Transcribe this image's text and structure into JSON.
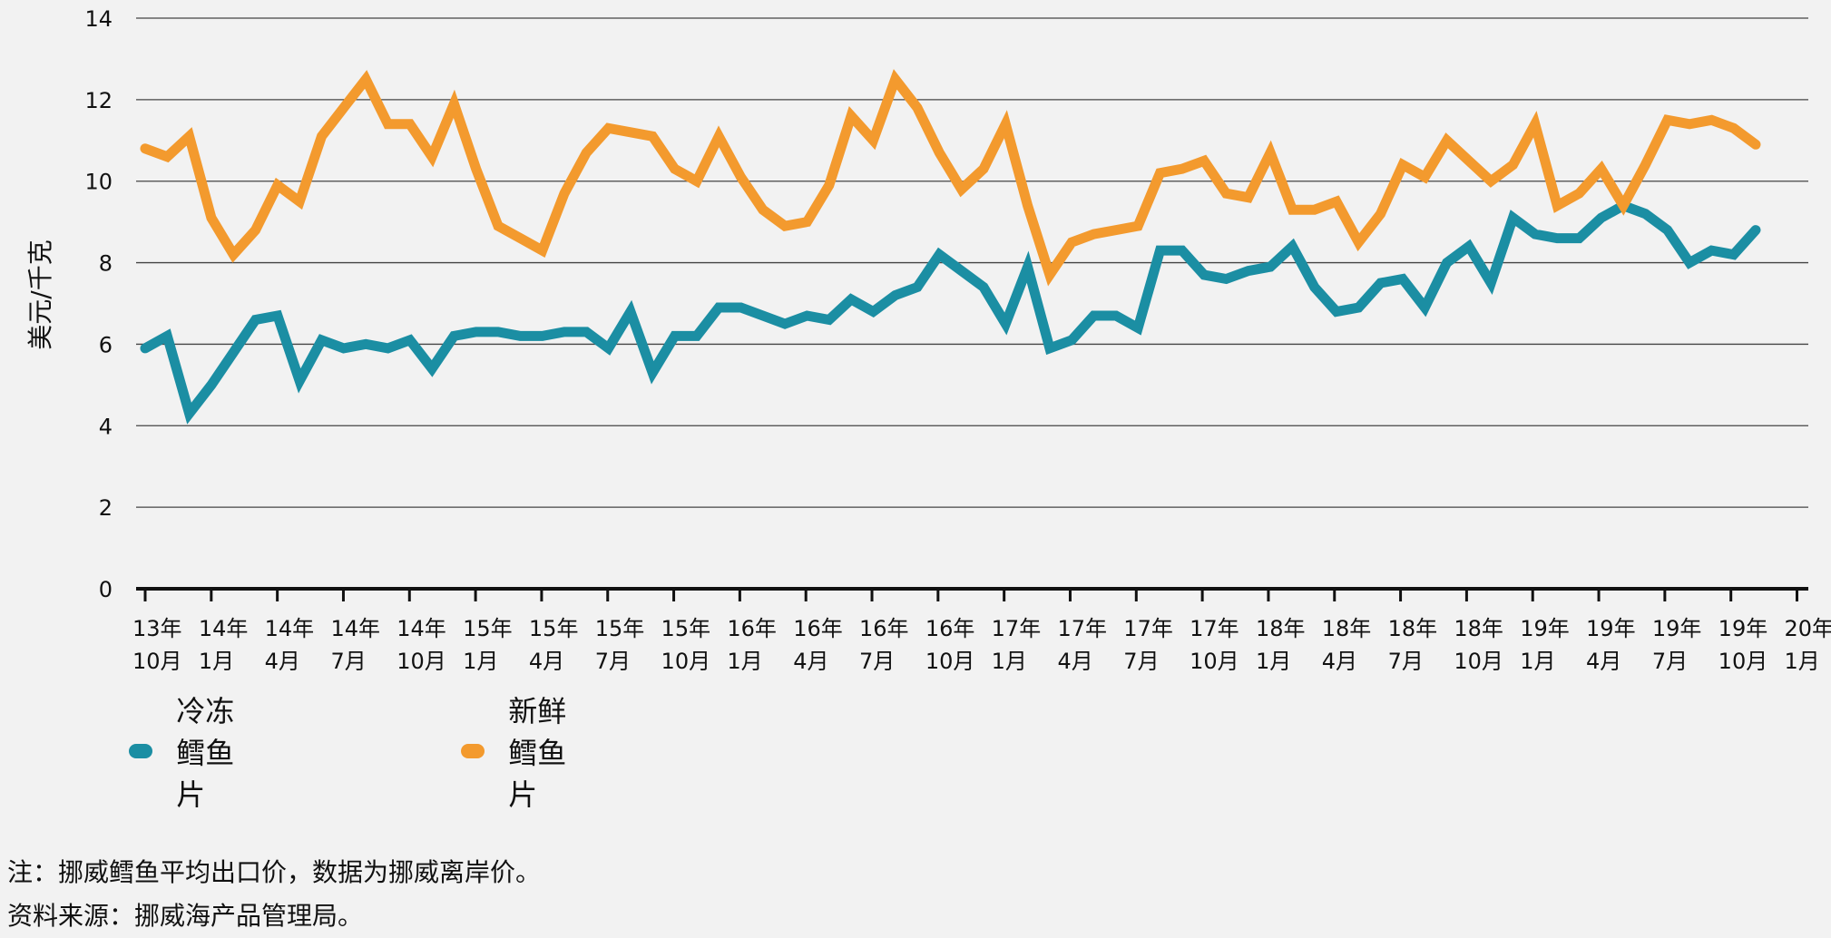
{
  "chart_data": {
    "type": "line",
    "title": "",
    "xlabel": "",
    "ylabel": "美元/千克",
    "ylim": [
      0,
      14
    ],
    "yticks": [
      0,
      2,
      4,
      6,
      8,
      10,
      12,
      14
    ],
    "grid": true,
    "legend_position": "bottom-left",
    "x_tick_labels": [
      [
        "13年",
        "10月"
      ],
      [
        "14年",
        "1月"
      ],
      [
        "14年",
        "4月"
      ],
      [
        "14年",
        "7月"
      ],
      [
        "14年",
        "10月"
      ],
      [
        "15年",
        "1月"
      ],
      [
        "15年",
        "4月"
      ],
      [
        "15年",
        "7月"
      ],
      [
        "15年",
        "10月"
      ],
      [
        "16年",
        "1月"
      ],
      [
        "16年",
        "4月"
      ],
      [
        "16年",
        "7月"
      ],
      [
        "16年",
        "10月"
      ],
      [
        "17年",
        "1月"
      ],
      [
        "17年",
        "4月"
      ],
      [
        "17年",
        "7月"
      ],
      [
        "17年",
        "10月"
      ],
      [
        "18年",
        "1月"
      ],
      [
        "18年",
        "4月"
      ],
      [
        "18年",
        "7月"
      ],
      [
        "18年",
        "10月"
      ],
      [
        "19年",
        "1月"
      ],
      [
        "19年",
        "4月"
      ],
      [
        "19年",
        "7月"
      ],
      [
        "19年",
        "10月"
      ],
      [
        "20年",
        "1月"
      ]
    ],
    "series": [
      {
        "name": "冷冻鳕鱼片",
        "color": "#1b8ea3",
        "values": [
          5.9,
          6.2,
          4.3,
          5.0,
          5.8,
          6.6,
          6.7,
          5.1,
          6.1,
          5.9,
          6.0,
          5.9,
          6.1,
          5.4,
          6.2,
          6.3,
          6.3,
          6.2,
          6.2,
          6.3,
          6.3,
          5.9,
          6.8,
          5.3,
          6.2,
          6.2,
          6.9,
          6.9,
          6.7,
          6.5,
          6.7,
          6.6,
          7.1,
          6.8,
          7.2,
          7.4,
          8.2,
          7.8,
          7.4,
          6.5,
          7.9,
          5.9,
          6.1,
          6.7,
          6.7,
          6.4,
          8.3,
          8.3,
          7.7,
          7.6,
          7.8,
          7.9,
          8.4,
          7.4,
          6.8,
          6.9,
          7.5,
          7.6,
          6.9,
          8.0,
          8.4,
          7.5,
          9.1,
          8.7,
          8.6,
          8.6,
          9.1,
          9.4,
          9.2,
          8.8,
          8.0,
          8.3,
          8.2,
          8.8
        ]
      },
      {
        "name": "新鲜鳕鱼片",
        "color": "#f39a2e",
        "values": [
          10.8,
          10.6,
          11.1,
          9.1,
          8.2,
          8.8,
          9.9,
          9.5,
          11.1,
          11.8,
          12.5,
          11.4,
          11.4,
          10.6,
          11.9,
          10.3,
          8.9,
          8.6,
          8.3,
          9.7,
          10.7,
          11.3,
          11.2,
          11.1,
          10.3,
          10.0,
          11.1,
          10.1,
          9.3,
          8.9,
          9.0,
          9.9,
          11.6,
          11.0,
          12.5,
          11.8,
          10.7,
          9.8,
          10.3,
          11.4,
          9.4,
          7.7,
          8.5,
          8.7,
          8.8,
          8.9,
          10.2,
          10.3,
          10.5,
          9.7,
          9.6,
          10.7,
          9.3,
          9.3,
          9.5,
          8.5,
          9.2,
          10.4,
          10.1,
          11.0,
          10.5,
          10.0,
          10.4,
          11.4,
          9.4,
          9.7,
          10.3,
          9.4,
          10.4,
          11.5,
          11.4,
          11.5,
          11.3,
          10.9
        ]
      }
    ]
  },
  "legend": {
    "frozen": {
      "label": "冷冻鳕鱼片",
      "color": "#1b8ea3"
    },
    "fresh": {
      "label": "新鲜鳕鱼片",
      "color": "#f39a2e"
    }
  },
  "notes": {
    "note": "注：挪威鳕鱼平均出口价，数据为挪威离岸价。",
    "source": "资料来源：挪威海产品管理局。"
  }
}
